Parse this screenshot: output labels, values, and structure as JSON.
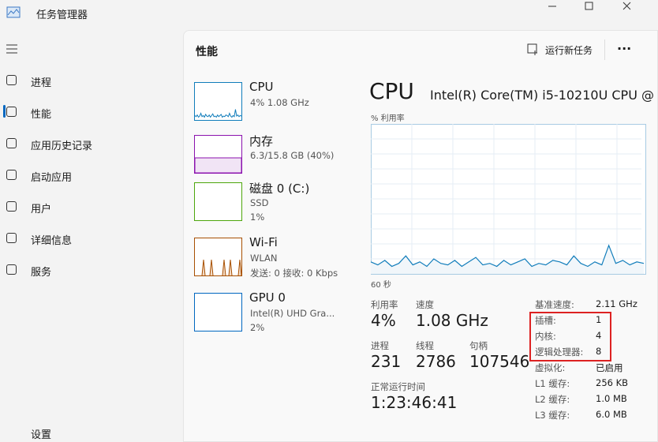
{
  "window": {
    "title": "任务管理器"
  },
  "nav": {
    "items": [
      "进程",
      "性能",
      "应用历史记录",
      "启动应用",
      "用户",
      "详细信息",
      "服务"
    ],
    "settings": "设置"
  },
  "header": {
    "title": "性能",
    "action": "运行新任务"
  },
  "devices": [
    {
      "name": "CPU",
      "details": [
        "4% 1.08 GHz"
      ]
    },
    {
      "name": "内存",
      "details": [
        "6.3/15.8 GB (40%)"
      ]
    },
    {
      "name": "磁盘 0 (C:)",
      "details": [
        "SSD",
        "1%"
      ]
    },
    {
      "name": "Wi-Fi",
      "details": [
        "WLAN",
        "发送: 0 接收: 0 Kbps"
      ]
    },
    {
      "name": "GPU 0",
      "details": [
        "Intel(R) UHD Gra...",
        "2%"
      ]
    }
  ],
  "detail": {
    "title": "CPU",
    "model": "Intel(R) Core(TM) i5-10210U CPU @",
    "graph_label": "% 利用率",
    "time_label": "60 秒",
    "history": [
      8,
      6,
      9,
      5,
      7,
      12,
      6,
      8,
      5,
      10,
      7,
      6,
      9,
      5,
      8,
      11,
      6,
      7,
      5,
      9,
      6,
      8,
      10,
      5,
      7,
      6,
      9,
      8,
      6,
      12,
      7,
      5,
      8,
      6,
      19,
      7,
      9,
      6,
      8,
      7
    ],
    "stats": [
      {
        "label": "利用率",
        "value": "4%"
      },
      {
        "label": "速度",
        "value": "1.08 GHz"
      },
      {
        "label": "进程",
        "value": "231"
      },
      {
        "label": "线程",
        "value": "2786"
      },
      {
        "label": "句柄",
        "value": "107546"
      },
      {
        "label": "正常运行时间",
        "value": "1:23:46:41"
      }
    ],
    "specs": [
      {
        "label": "基准速度:",
        "value": "2.11 GHz"
      },
      {
        "label": "插槽:",
        "value": "1"
      },
      {
        "label": "内核:",
        "value": "4"
      },
      {
        "label": "逻辑处理器:",
        "value": "8"
      },
      {
        "label": "虚拟化:",
        "value": "已启用"
      },
      {
        "label": "L1 缓存:",
        "value": "256 KB"
      },
      {
        "label": "L2 缓存:",
        "value": "1.0 MB"
      },
      {
        "label": "L3 缓存:",
        "value": "6.0 MB"
      }
    ]
  }
}
